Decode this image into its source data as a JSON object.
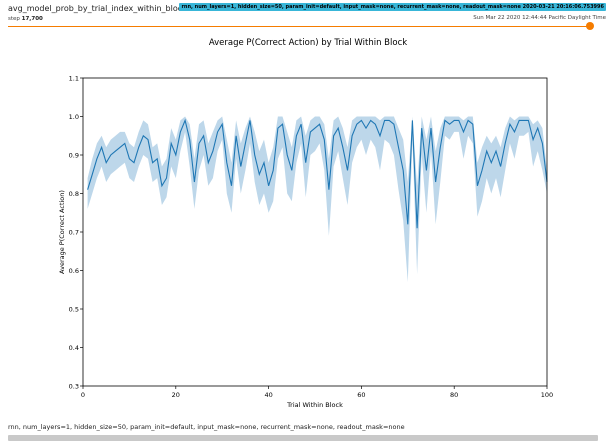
{
  "card": {
    "title": "avg_model_prob_by_trial_index_within_block",
    "step_label": "step",
    "step_value": "17,700",
    "run_chip": "rnn, num_layers=1, hidden_size=50, param_init=default, input_mask=none, recurrent_mask=none, readout_mask=none 2020-03-21 20:16:06.753996",
    "wall_time": "Sun Mar 22 2020 12:44:44 Pacific Daylight Time",
    "run_label": "rnn, num_layers=1, hidden_size=50, param_init=default, input_mask=none, recurrent_mask=none, readout_mask=none",
    "slider_value": 1.0
  },
  "colors": {
    "line": "#1f77b4",
    "band": "#bdd7ea",
    "slider": "#f57c00",
    "chip": "#38b6d8"
  },
  "chart_data": {
    "type": "line",
    "title": "Average P(Correct Action) by Trial Within Block",
    "xlabel": "Trial Within Block",
    "ylabel": "Average P(Correct Action)",
    "xlim": [
      0,
      100
    ],
    "ylim": [
      0.3,
      1.1
    ],
    "xticks": [
      0,
      20,
      40,
      60,
      80,
      100
    ],
    "yticks": [
      0.3,
      0.4,
      0.5,
      0.6,
      0.7,
      0.8,
      0.9,
      1.0,
      1.1
    ],
    "grid": false,
    "series": [
      {
        "x": [
          1,
          2,
          3,
          4,
          5,
          6,
          7,
          8,
          9,
          10,
          11,
          12,
          13,
          14,
          15,
          16,
          17,
          18,
          19,
          20,
          21,
          22,
          23,
          24,
          25,
          26,
          27,
          28,
          29,
          30,
          31,
          32,
          33,
          34,
          35,
          36,
          37,
          38,
          39,
          40,
          41,
          42,
          43,
          44,
          45,
          46,
          47,
          48,
          49,
          50,
          51,
          52,
          53,
          54,
          55,
          56,
          57,
          58,
          59,
          60,
          61,
          62,
          63,
          64,
          65,
          66,
          67,
          68,
          69,
          70,
          71,
          72,
          73,
          74,
          75,
          76,
          77,
          78,
          79,
          80,
          81,
          82,
          83,
          84,
          85,
          86,
          87,
          88,
          89,
          90,
          91,
          92,
          93,
          94,
          95,
          96,
          97,
          98,
          99,
          100
        ],
        "y": [
          0.81,
          0.85,
          0.89,
          0.92,
          0.88,
          0.9,
          0.91,
          0.92,
          0.93,
          0.89,
          0.88,
          0.92,
          0.95,
          0.94,
          0.88,
          0.89,
          0.82,
          0.84,
          0.93,
          0.9,
          0.96,
          0.99,
          0.94,
          0.83,
          0.93,
          0.95,
          0.88,
          0.91,
          0.96,
          0.98,
          0.88,
          0.82,
          0.95,
          0.87,
          0.93,
          0.99,
          0.9,
          0.85,
          0.88,
          0.82,
          0.86,
          0.97,
          0.98,
          0.9,
          0.86,
          0.95,
          0.98,
          0.88,
          0.96,
          0.97,
          0.98,
          0.94,
          0.81,
          0.95,
          0.97,
          0.92,
          0.86,
          0.95,
          0.98,
          0.99,
          0.97,
          0.99,
          0.98,
          0.95,
          0.99,
          0.99,
          0.98,
          0.92,
          0.86,
          0.72,
          0.99,
          0.71,
          0.97,
          0.86,
          0.97,
          0.83,
          0.92,
          0.99,
          0.98,
          0.99,
          0.99,
          0.96,
          0.99,
          0.98,
          0.82,
          0.86,
          0.91,
          0.88,
          0.91,
          0.87,
          0.93,
          0.98,
          0.96,
          0.99,
          0.99,
          0.99,
          0.94,
          0.97,
          0.93,
          0.83
        ],
        "lower": [
          0.76,
          0.8,
          0.84,
          0.87,
          0.83,
          0.85,
          0.86,
          0.87,
          0.88,
          0.84,
          0.83,
          0.87,
          0.9,
          0.89,
          0.83,
          0.84,
          0.77,
          0.79,
          0.87,
          0.84,
          0.91,
          0.96,
          0.87,
          0.76,
          0.86,
          0.9,
          0.82,
          0.84,
          0.91,
          0.94,
          0.8,
          0.75,
          0.89,
          0.8,
          0.86,
          0.93,
          0.83,
          0.77,
          0.8,
          0.75,
          0.78,
          0.89,
          0.92,
          0.8,
          0.78,
          0.88,
          0.93,
          0.79,
          0.9,
          0.91,
          0.93,
          0.86,
          0.69,
          0.87,
          0.91,
          0.84,
          0.77,
          0.88,
          0.92,
          0.94,
          0.9,
          0.94,
          0.92,
          0.86,
          0.94,
          0.93,
          0.9,
          0.81,
          0.73,
          0.57,
          0.94,
          0.59,
          0.9,
          0.75,
          0.91,
          0.72,
          0.83,
          0.95,
          0.94,
          0.96,
          0.96,
          0.89,
          0.95,
          0.93,
          0.74,
          0.78,
          0.84,
          0.8,
          0.84,
          0.79,
          0.86,
          0.93,
          0.89,
          0.95,
          0.95,
          0.96,
          0.87,
          0.91,
          0.86,
          0.8
        ],
        "upper": [
          0.84,
          0.89,
          0.93,
          0.95,
          0.92,
          0.94,
          0.95,
          0.96,
          0.96,
          0.93,
          0.92,
          0.96,
          0.99,
          0.98,
          0.92,
          0.93,
          0.87,
          0.89,
          0.97,
          0.94,
          0.99,
          1.0,
          0.98,
          0.89,
          0.98,
          0.99,
          0.93,
          0.96,
          0.99,
          1.0,
          0.94,
          0.88,
          0.99,
          0.93,
          0.97,
          1.0,
          0.96,
          0.91,
          0.94,
          0.88,
          0.92,
          1.0,
          1.0,
          0.96,
          0.92,
          0.99,
          1.0,
          0.95,
          0.99,
          1.0,
          1.0,
          0.98,
          0.89,
          0.99,
          1.0,
          0.97,
          0.92,
          0.99,
          1.0,
          1.0,
          1.0,
          1.0,
          1.0,
          0.99,
          1.0,
          1.0,
          1.0,
          0.97,
          0.94,
          0.83,
          1.0,
          0.82,
          1.0,
          0.94,
          1.0,
          0.91,
          0.97,
          1.0,
          1.0,
          1.0,
          1.0,
          0.99,
          1.0,
          1.0,
          0.88,
          0.92,
          0.95,
          0.93,
          0.95,
          0.92,
          0.97,
          1.0,
          0.99,
          1.0,
          1.0,
          1.0,
          0.98,
          0.99,
          0.97,
          0.86
        ]
      }
    ]
  }
}
